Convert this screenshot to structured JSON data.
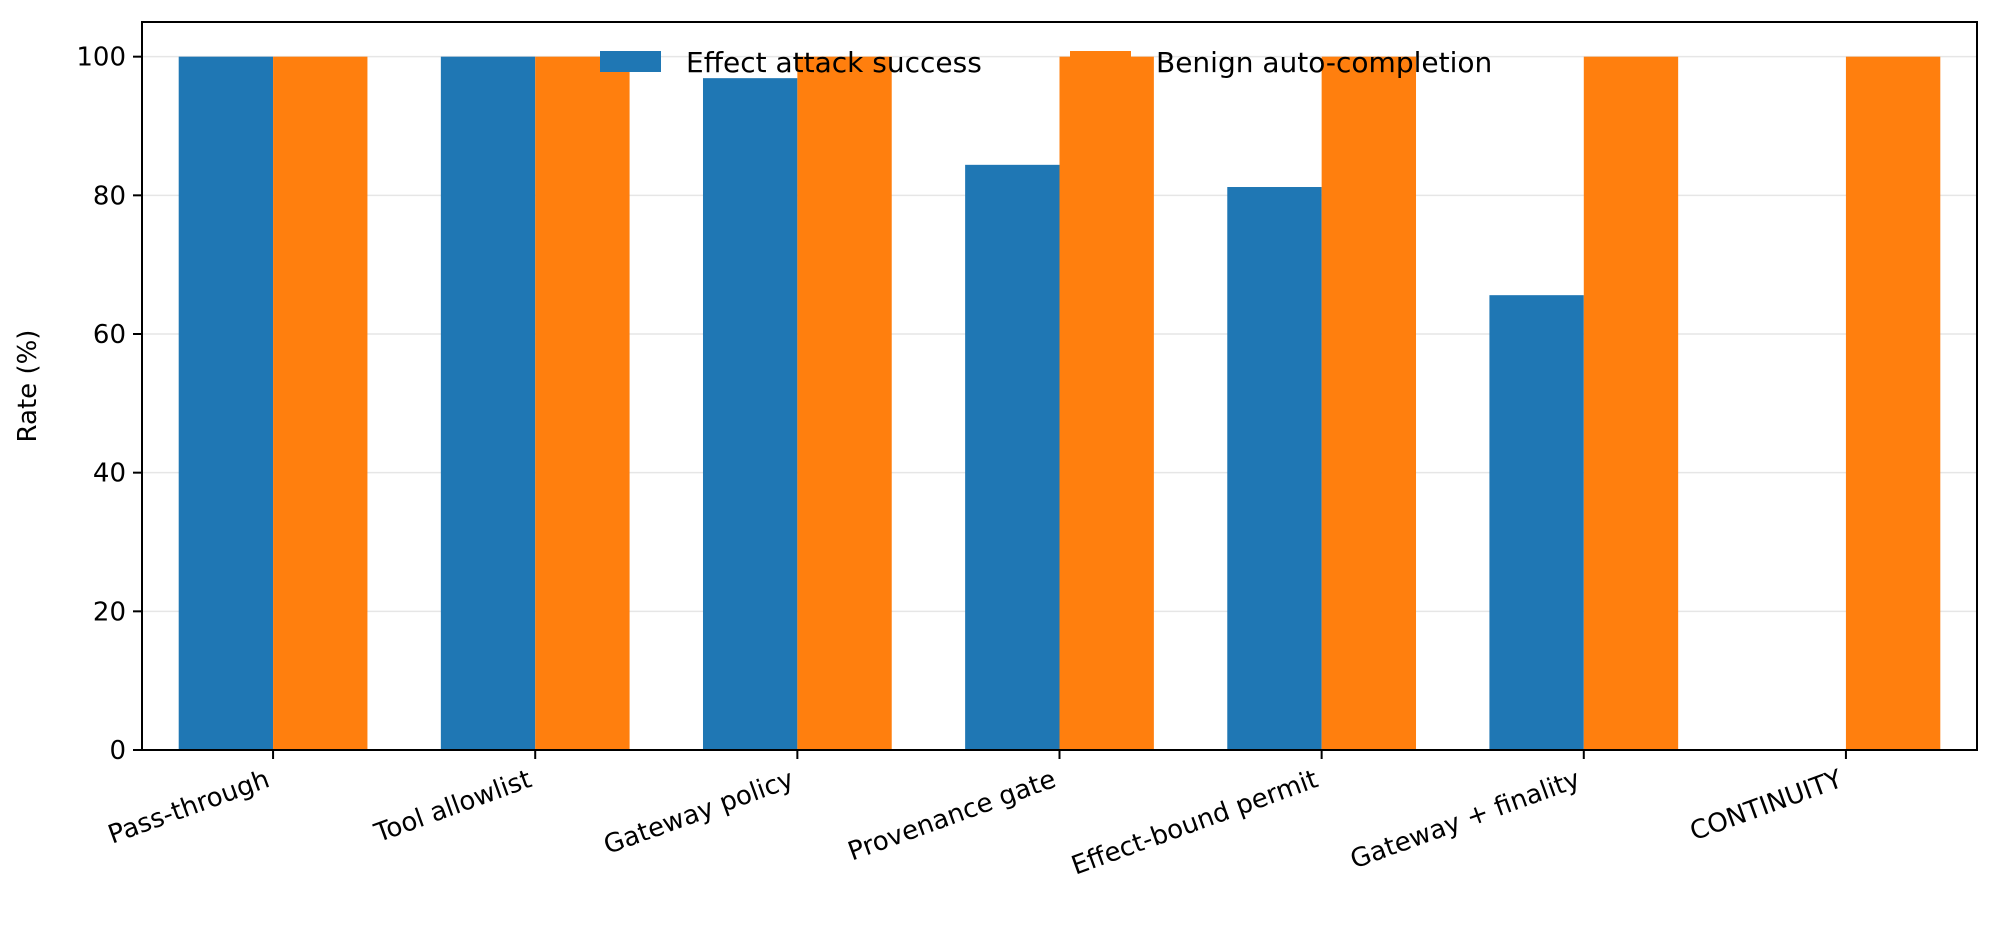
{
  "chart_data": {
    "type": "bar",
    "title": "",
    "xlabel": "",
    "ylabel": "Rate (%)",
    "ylim": [
      0,
      105
    ],
    "yticks": [
      0,
      20,
      40,
      60,
      80,
      100
    ],
    "grid": "y",
    "legend_position": "top-center",
    "categories": [
      "Pass-through",
      "Tool allowlist",
      "Gateway policy",
      "Provenance gate",
      "Effect-bound permit",
      "Gateway + finality",
      "CONTINUITY"
    ],
    "series": [
      {
        "name": "Effect attack success",
        "color": "#1f77b4",
        "values": [
          100,
          100,
          96.9,
          84.4,
          81.2,
          65.6,
          0
        ]
      },
      {
        "name": "Benign auto-completion",
        "color": "#ff7f0e",
        "values": [
          100,
          100,
          100,
          100,
          100,
          100,
          100
        ]
      }
    ]
  }
}
